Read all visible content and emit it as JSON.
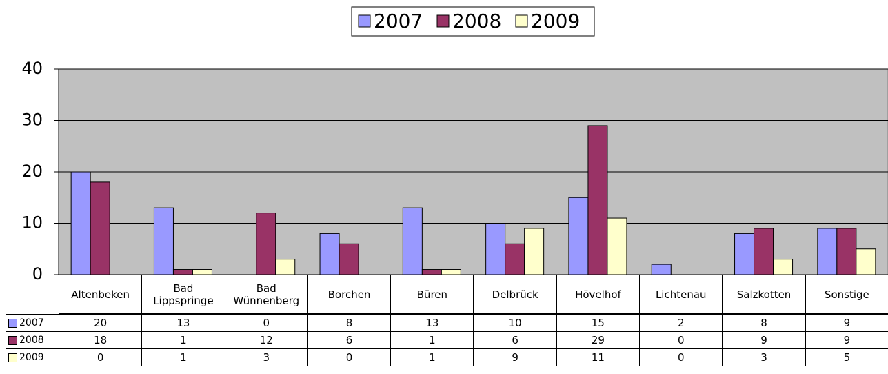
{
  "chart_data": {
    "type": "bar",
    "categories": [
      "Altenbeken",
      "Bad Lippspringe",
      "Bad Wünnenberg",
      "Borchen",
      "Büren",
      "Delbrück",
      "Hövelhof",
      "Lichtenau",
      "Salzkotten",
      "Sonstige"
    ],
    "series": [
      {
        "name": "2007",
        "color": "#9999ff",
        "values": [
          20,
          13,
          0,
          8,
          13,
          10,
          15,
          2,
          8,
          9
        ]
      },
      {
        "name": "2008",
        "color": "#993366",
        "values": [
          18,
          1,
          12,
          6,
          1,
          6,
          29,
          0,
          9,
          9
        ]
      },
      {
        "name": "2009",
        "color": "#ffffcc",
        "values": [
          0,
          1,
          3,
          0,
          1,
          9,
          11,
          0,
          3,
          5
        ]
      }
    ],
    "ylim": [
      0,
      40
    ],
    "yticks": [
      0,
      10,
      20,
      30,
      40
    ],
    "grid": true,
    "legend": "top",
    "plot_background": "#c0c0c0"
  }
}
